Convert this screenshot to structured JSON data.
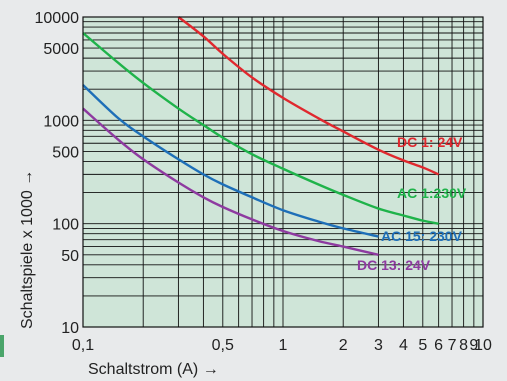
{
  "chart_data": {
    "type": "line",
    "xscale": "log",
    "yscale": "log",
    "xlim": [
      0.1,
      10
    ],
    "ylim": [
      10,
      10000
    ],
    "grid": true,
    "xlabel": "Schaltstrom (A) →",
    "ylabel": "Schaltspiele x 1000 →",
    "x_ticks": [
      {
        "value": 0.1,
        "label": "0,1"
      },
      {
        "value": 0.5,
        "label": "0,5"
      },
      {
        "value": 1,
        "label": "1"
      },
      {
        "value": 2,
        "label": "2"
      },
      {
        "value": 3,
        "label": "3"
      },
      {
        "value": 4,
        "label": "4"
      },
      {
        "value": 5,
        "label": "5"
      },
      {
        "value": 6,
        "label": "6"
      },
      {
        "value": 7,
        "label": "7"
      },
      {
        "value": 8,
        "label": "8"
      },
      {
        "value": 9,
        "label": "9"
      },
      {
        "value": 10,
        "label": "10"
      }
    ],
    "y_ticks": [
      {
        "value": 10,
        "label": "10"
      },
      {
        "value": 50,
        "label": "50"
      },
      {
        "value": 100,
        "label": "100"
      },
      {
        "value": 500,
        "label": "500"
      },
      {
        "value": 1000,
        "label": "1000"
      },
      {
        "value": 5000,
        "label": "5000"
      },
      {
        "value": 10000,
        "label": "10000"
      }
    ],
    "series": [
      {
        "name": "DC 1: 24V",
        "color": "#e0282e",
        "x": [
          0.3,
          0.4,
          0.5,
          0.7,
          1,
          1.5,
          2,
          3,
          4,
          5,
          6
        ],
        "y": [
          10000,
          6500,
          4400,
          2600,
          1650,
          1050,
          780,
          520,
          410,
          350,
          300
        ]
      },
      {
        "name": "AC 1:230V",
        "color": "#1fb34a",
        "x": [
          0.1,
          0.15,
          0.2,
          0.3,
          0.4,
          0.5,
          0.7,
          1,
          1.5,
          2,
          3,
          4,
          5,
          6
        ],
        "y": [
          7000,
          3600,
          2300,
          1300,
          900,
          680,
          470,
          340,
          240,
          190,
          140,
          120,
          107,
          100
        ]
      },
      {
        "name": "AC 15: 230V",
        "color": "#1e6fb8",
        "x": [
          0.1,
          0.15,
          0.2,
          0.3,
          0.4,
          0.5,
          0.7,
          1,
          1.5,
          2,
          3
        ],
        "y": [
          2200,
          1050,
          700,
          420,
          300,
          240,
          180,
          135,
          105,
          90,
          75
        ]
      },
      {
        "name": "DC 13: 24V",
        "color": "#8e3aa0",
        "x": [
          0.1,
          0.15,
          0.2,
          0.3,
          0.4,
          0.5,
          0.7,
          1,
          1.5,
          2,
          3
        ],
        "y": [
          1300,
          650,
          420,
          250,
          180,
          145,
          110,
          85,
          68,
          60,
          50
        ]
      }
    ]
  }
}
